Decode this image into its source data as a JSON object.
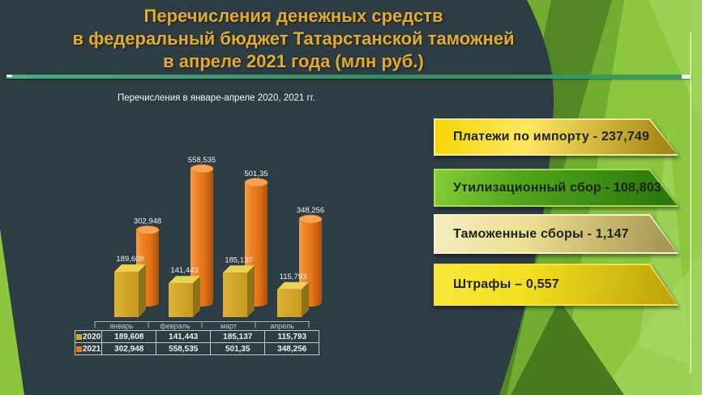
{
  "slide_title": {
    "lines": [
      "Перечисления денежных средств",
      "в федеральный бюджет Татарстанской таможней",
      "в апреле 2021 года (млн руб.)"
    ]
  },
  "chart_data": {
    "type": "bar",
    "title": "Перечисления в январе-апреле 2020, 2021 гг.",
    "categories": [
      "январь",
      "февраль",
      "март",
      "апрель"
    ],
    "series": [
      {
        "name": "2020",
        "shape": "box3d",
        "color": "#d7a928",
        "values": [
          189.608,
          141.443,
          185.137,
          115.793
        ],
        "display": [
          "189,608",
          "141,443",
          "185,137",
          "115,793"
        ]
      },
      {
        "name": "2021",
        "shape": "cylinder3d",
        "color": "#e87a1b",
        "values": [
          302.948,
          558.535,
          501.35,
          348.256
        ],
        "display": [
          "302,948",
          "558,535",
          "501,35",
          "348,256"
        ]
      }
    ],
    "ylim": [
      0,
      600
    ],
    "grid": false,
    "data_labels": true,
    "data_table": true,
    "legend_position": "data-table-left"
  },
  "banners": [
    {
      "label": "Платежи по импорту - 237,749",
      "gradient": [
        "#f6d502",
        "#ffe763",
        "#a68617"
      ],
      "border": "#f5e89b"
    },
    {
      "label": "Утилизационный сбор - 108,803",
      "gradient": [
        "#85cb36",
        "#4ea319",
        "#2b770e"
      ],
      "border": "#a8dc52"
    },
    {
      "label": "Таможенные сборы  - 1,147",
      "gradient": [
        "#f4edc2",
        "#ecdf92",
        "#a89752"
      ],
      "border": "#f7f1ce"
    },
    {
      "label": "Штрафы – 0,557",
      "gradient": [
        "#f7e83a",
        "#f4de20",
        "#bfa60c"
      ],
      "border": "#f9df4b"
    }
  ],
  "colors": {
    "background_dark": "#2e3c43",
    "accent_line_teal": "#2f9765",
    "title_gold": "#e2ab2f",
    "facet_green_light": "#8dc63f",
    "facet_green_dark": "#4a7d22"
  }
}
